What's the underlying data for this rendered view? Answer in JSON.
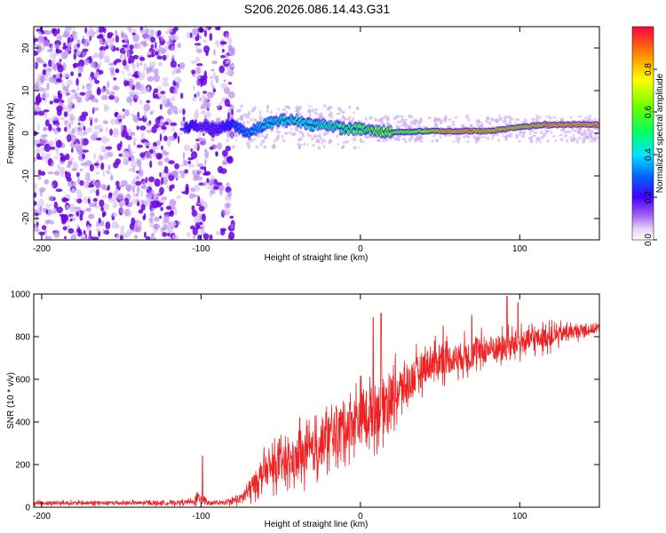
{
  "title": "S206.2026.086.14.43.G31",
  "colors": {
    "snr_line": "#ee2222",
    "scatter_dense": "#6a00e0",
    "scatter_light": "#c9a8f2",
    "axis": "#000000"
  },
  "chart_data": [
    {
      "type": "heatmap",
      "title": "S206.2026.086.14.43.G31",
      "xlabel": "Height of straight line (km)",
      "ylabel": "Frequency (Hz)",
      "xlim": [
        -205,
        150
      ],
      "ylim": [
        -25,
        25
      ],
      "xticks": [
        -200,
        -100,
        0,
        100
      ],
      "yticks": [
        -20,
        -10,
        0,
        10,
        20
      ],
      "xtick_labels": [
        "-200",
        "-100",
        "0",
        "100"
      ],
      "ytick_labels": [
        "-20",
        "-10",
        "0",
        "10",
        "20"
      ],
      "ridge": {
        "description": "dominant frequency track",
        "x": [
          -110,
          -100,
          -90,
          -80,
          -70,
          -60,
          -50,
          -40,
          -30,
          -20,
          -10,
          0,
          10,
          20,
          30,
          40,
          50,
          60,
          70,
          80,
          90,
          100,
          110,
          120,
          130,
          140,
          150
        ],
        "y": [
          1,
          2,
          1,
          2,
          0,
          2,
          3,
          3,
          2,
          2,
          1,
          1,
          0.5,
          0.3,
          0.3,
          0.5,
          0.5,
          0.5,
          0.5,
          0.5,
          1,
          1.5,
          1.8,
          2,
          2,
          2,
          2
        ],
        "amplitude": [
          0.3,
          0.2,
          0.2,
          0.3,
          0.4,
          0.45,
          0.5,
          0.55,
          0.5,
          0.55,
          0.6,
          0.65,
          0.7,
          0.7,
          0.7,
          0.75,
          0.9,
          0.95,
          0.95,
          0.9,
          0.9,
          0.85,
          0.9,
          0.95,
          0.95,
          0.95,
          0.95
        ]
      },
      "noise_region": [
        -205,
        -80
      ],
      "colorbar": {
        "label": "Normalized spectral amplitude",
        "range": [
          0,
          1
        ],
        "ticks": [
          0.0,
          0.2,
          0.4,
          0.6,
          0.8
        ],
        "tick_labels": [
          "0.0",
          "0.2",
          "0.4",
          "0.6",
          "0.8"
        ]
      }
    },
    {
      "type": "line",
      "xlabel": "Height of straight line (km)",
      "ylabel": "SNR (10 * v/v)",
      "xlim": [
        -205,
        150
      ],
      "ylim": [
        0,
        1000
      ],
      "xticks": [
        -200,
        -100,
        0,
        100
      ],
      "yticks": [
        0,
        200,
        400,
        600,
        800,
        1000
      ],
      "xtick_labels": [
        "-200",
        "-100",
        "0",
        "100"
      ],
      "ytick_labels": [
        "0",
        "200",
        "400",
        "600",
        "800",
        "1000"
      ],
      "series": [
        {
          "name": "SNR",
          "envelope_x": [
            -205,
            -180,
            -150,
            -120,
            -105,
            -100,
            -95,
            -85,
            -75,
            -70,
            -60,
            -50,
            -40,
            -30,
            -20,
            -10,
            0,
            10,
            20,
            30,
            40,
            50,
            60,
            70,
            80,
            90,
            100,
            110,
            120,
            130,
            140,
            150
          ],
          "envelope_mean": [
            20,
            20,
            20,
            20,
            25,
            50,
            20,
            20,
            40,
            80,
            170,
            200,
            220,
            260,
            330,
            380,
            420,
            460,
            520,
            580,
            660,
            690,
            700,
            720,
            740,
            750,
            770,
            790,
            800,
            820,
            830,
            840
          ],
          "envelope_spread": [
            15,
            15,
            15,
            15,
            20,
            60,
            15,
            15,
            40,
            80,
            120,
            150,
            150,
            180,
            200,
            200,
            220,
            220,
            200,
            160,
            140,
            130,
            120,
            120,
            110,
            110,
            100,
            90,
            80,
            60,
            50,
            40
          ],
          "spikes": [
            {
              "x": -99,
              "y": 240
            },
            {
              "x": -38,
              "y": 420
            },
            {
              "x": -15,
              "y": 460
            },
            {
              "x": 8,
              "y": 890
            },
            {
              "x": 13,
              "y": 910
            },
            {
              "x": 92,
              "y": 990
            },
            {
              "x": 99,
              "y": 960
            },
            {
              "x": 52,
              "y": 850
            },
            {
              "x": 70,
              "y": 900
            }
          ]
        }
      ]
    }
  ]
}
